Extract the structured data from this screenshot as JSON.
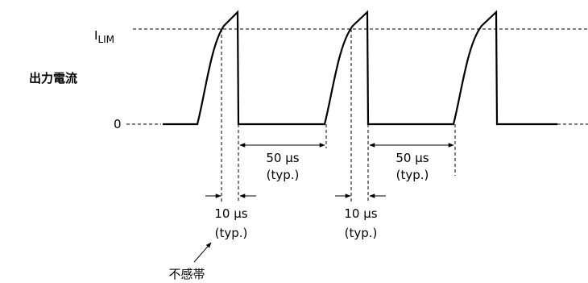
{
  "labels": {
    "y_axis": "出力電流",
    "ilim_main": "I",
    "ilim_sub": "LIM",
    "zero": "0",
    "deadband": "不感帯"
  },
  "annotations": {
    "off_time_1": {
      "value": "50 µs",
      "note": "(typ.)"
    },
    "off_time_2": {
      "value": "50 µs",
      "note": "(typ.)"
    },
    "dead_time_1": {
      "value": "10 µs",
      "note": "(typ.)"
    },
    "dead_time_2": {
      "value": "10 µs",
      "note": "(typ.)"
    }
  },
  "colors": {
    "ink": "#000000",
    "background": "#ffffff"
  }
}
